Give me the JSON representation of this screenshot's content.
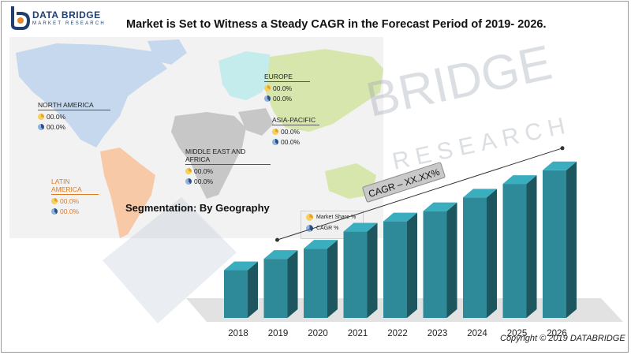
{
  "header": {
    "logo_line1": "DATA BRIDGE",
    "logo_line2": "MARKET RESEARCH",
    "title": "Market is Set to Witness a Steady CAGR in the Forecast Period of 2019- 2026."
  },
  "watermark": {
    "line1": "BRIDGE",
    "line2": "RESEARCH"
  },
  "map": {
    "segmentation_label": "Segmentation: By Geography",
    "regions": [
      {
        "name": "NORTH AMERICA",
        "share": "00.0%",
        "cagr": "00.0%",
        "color": "#222222"
      },
      {
        "name": "EUROPE",
        "share": "00.0%",
        "cagr": "00.0%",
        "color": "#222222"
      },
      {
        "name": "ASIA-PACIFIC",
        "share": "00.0%",
        "cagr": "00.0%",
        "color": "#222222"
      },
      {
        "name": "MIDDLE EAST AND AFRICA",
        "share": "00.0%",
        "cagr": "00.0%",
        "color": "#222222"
      },
      {
        "name": "LATIN AMERICA",
        "share": "00.0%",
        "cagr": "00.0%",
        "color": "#e07b1f"
      }
    ],
    "legend": {
      "share_label": "Market Share %",
      "cagr_label": "CAGR %"
    }
  },
  "chart_data": {
    "type": "bar",
    "categories": [
      "2018",
      "2019",
      "2020",
      "2021",
      "2022",
      "2023",
      "2024",
      "2025",
      "2026"
    ],
    "values": [
      4.2,
      5.2,
      6.1,
      7.6,
      8.5,
      9.4,
      10.6,
      11.8,
      13.0
    ],
    "annotation": "CAGR – XX.XX%",
    "bar_color": "#2e8a99"
  },
  "footer": {
    "copyright": "Copyright © 2019 DATABRIDGE"
  }
}
